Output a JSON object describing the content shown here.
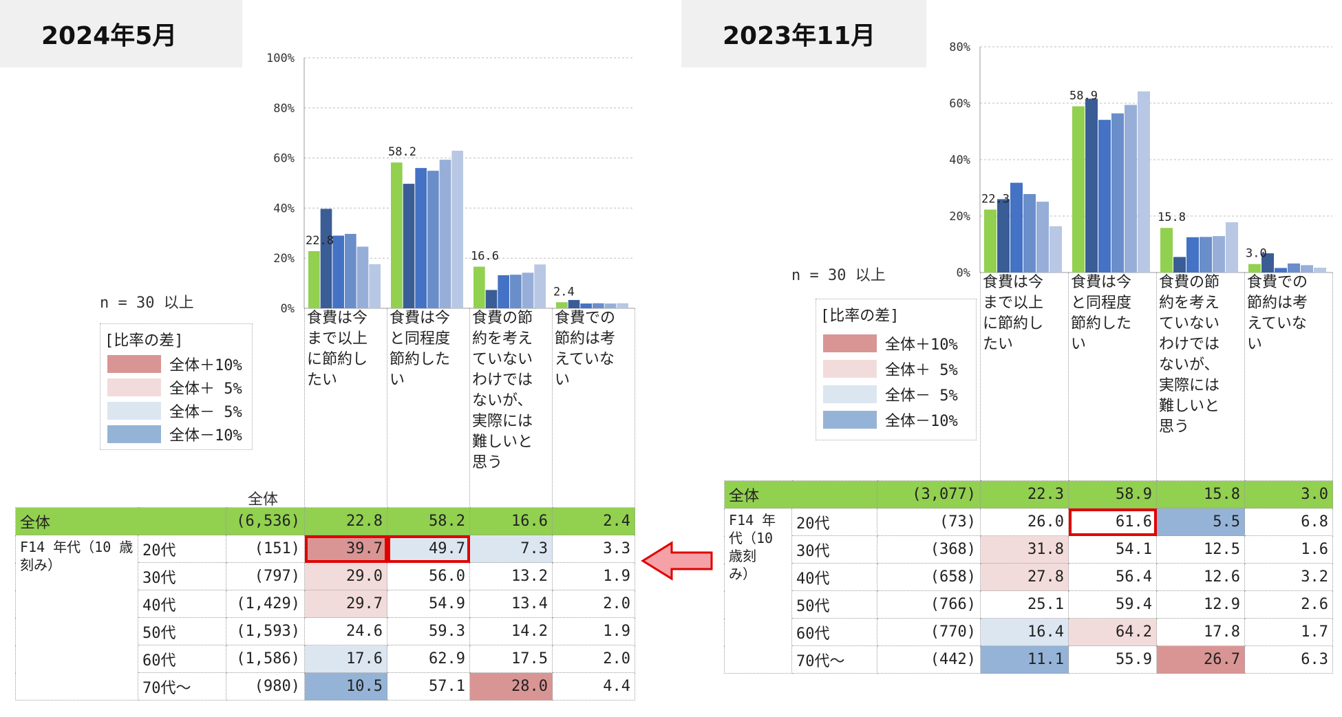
{
  "colors": {
    "series": [
      "#92d050",
      "#3a5d96",
      "#4472c4",
      "#6a8ec9",
      "#97afd8",
      "#b8c7e4"
    ],
    "plus10": "#d99594",
    "plus5": "#f2dcdb",
    "minus5": "#dce6f1",
    "minus10": "#95b3d7",
    "total_row": "#92d050",
    "highlight": "#e00000",
    "arrow": "#f4a2a8"
  },
  "series_names": [
    "全体",
    "20代",
    "30代",
    "40代",
    "50代",
    "60代",
    "70代〜"
  ],
  "categories": [
    "食費は今\nまで以上\nに節約し\nたい",
    "食費は今\nと同程度\n節約した\nい",
    "食費の節\n約を考え\nていない\nわけでは\nないが、\n実際には\n難しいと\n思う",
    "食費での\n節約は考\nえていな\nい"
  ],
  "legend": {
    "title": "[比率の差]",
    "items": [
      "全体＋10%",
      "全体＋ 5%",
      "全体－ 5%",
      "全体－10%"
    ]
  },
  "n_label": "n = 30 以上",
  "group_label": "F14 年代（10 歳刻み）",
  "group_label_right": "F14 年\n代（10\n歳刻\nみ）",
  "chart_data": [
    {
      "type": "bar",
      "title": "2024年5月",
      "total_header": "全体",
      "yticks": [
        "0%",
        "20%",
        "40%",
        "60%",
        "80%",
        "100%"
      ],
      "ylim": [
        0,
        100
      ],
      "categories": [
        "食費は今まで以上に節約したい",
        "食費は今と同程度節約したい",
        "食費の節約を考えていないわけではないが、実際には難しいと思う",
        "食費での節約は考えていない"
      ],
      "total_labels": [
        "22.8",
        "58.2",
        "16.6",
        "2.4"
      ],
      "rows": [
        {
          "label": "全体",
          "n": "(6,536)",
          "values": [
            "22.8",
            "58.2",
            "16.6",
            "2.4"
          ],
          "shade": [
            "",
            "",
            "",
            ""
          ]
        },
        {
          "label": "20代",
          "n": "(151)",
          "values": [
            "39.7",
            "49.7",
            "7.3",
            "3.3"
          ],
          "shade": [
            "plus10",
            "minus5",
            "minus5",
            ""
          ],
          "highlight": [
            true,
            true,
            false,
            false
          ]
        },
        {
          "label": "30代",
          "n": "(797)",
          "values": [
            "29.0",
            "56.0",
            "13.2",
            "1.9"
          ],
          "shade": [
            "plus5",
            "",
            "",
            ""
          ]
        },
        {
          "label": "40代",
          "n": "(1,429)",
          "values": [
            "29.7",
            "54.9",
            "13.4",
            "2.0"
          ],
          "shade": [
            "plus5",
            "",
            "",
            ""
          ]
        },
        {
          "label": "50代",
          "n": "(1,593)",
          "values": [
            "24.6",
            "59.3",
            "14.2",
            "1.9"
          ],
          "shade": [
            "",
            "",
            "",
            ""
          ]
        },
        {
          "label": "60代",
          "n": "(1,586)",
          "values": [
            "17.6",
            "62.9",
            "17.5",
            "2.0"
          ],
          "shade": [
            "minus5",
            "",
            "",
            ""
          ]
        },
        {
          "label": "70代〜",
          "n": "(980)",
          "values": [
            "10.5",
            "57.1",
            "28.0",
            "4.4"
          ],
          "shade": [
            "minus10",
            "",
            "plus10",
            ""
          ]
        }
      ]
    },
    {
      "type": "bar",
      "title": "2023年11月",
      "total_header": "",
      "yticks": [
        "0%",
        "20%",
        "40%",
        "60%",
        "80%"
      ],
      "ylim": [
        0,
        80
      ],
      "categories": [
        "食費は今まで以上に節約したい",
        "食費は今と同程度節約したい",
        "食費の節約を考えていないわけではないが、実際には難しいと思う",
        "食費での節約は考えていない"
      ],
      "total_labels": [
        "22.3",
        "58.9",
        "15.8",
        "3.0"
      ],
      "rows": [
        {
          "label": "全体",
          "n": "(3,077)",
          "values": [
            "22.3",
            "58.9",
            "15.8",
            "3.0"
          ],
          "shade": [
            "",
            "",
            "",
            ""
          ]
        },
        {
          "label": "20代",
          "n": "(73)",
          "values": [
            "26.0",
            "61.6",
            "5.5",
            "6.8"
          ],
          "shade": [
            "",
            "",
            "minus10",
            ""
          ],
          "highlight": [
            false,
            true,
            false,
            false
          ]
        },
        {
          "label": "30代",
          "n": "(368)",
          "values": [
            "31.8",
            "54.1",
            "12.5",
            "1.6"
          ],
          "shade": [
            "plus5",
            "",
            "",
            ""
          ]
        },
        {
          "label": "40代",
          "n": "(658)",
          "values": [
            "27.8",
            "56.4",
            "12.6",
            "3.2"
          ],
          "shade": [
            "plus5",
            "",
            "",
            ""
          ]
        },
        {
          "label": "50代",
          "n": "(766)",
          "values": [
            "25.1",
            "59.4",
            "12.9",
            "2.6"
          ],
          "shade": [
            "",
            "",
            "",
            ""
          ]
        },
        {
          "label": "60代",
          "n": "(770)",
          "values": [
            "16.4",
            "64.2",
            "17.8",
            "1.7"
          ],
          "shade": [
            "minus5",
            "plus5",
            "",
            ""
          ]
        },
        {
          "label": "70代〜",
          "n": "(442)",
          "values": [
            "11.1",
            "55.9",
            "26.7",
            "6.3"
          ],
          "shade": [
            "minus10",
            "",
            "plus10",
            ""
          ]
        }
      ]
    }
  ]
}
